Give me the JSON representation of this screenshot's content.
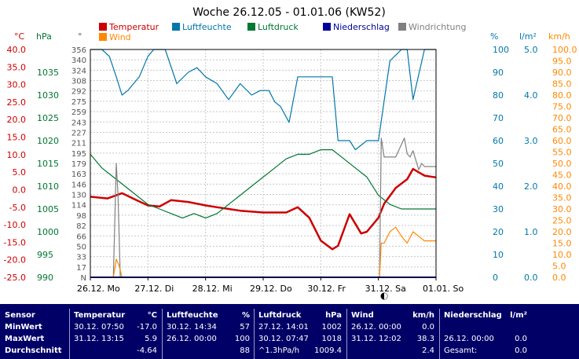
{
  "chart_data": {
    "type": "line",
    "title": "Woche 26.12.05 - 01.01.06 (KW52)",
    "x_ticks": [
      "26.12. Mo",
      "27.12. Di",
      "28.12. Mi",
      "29.12. Do",
      "30.12. Fr",
      "31.12. Sa",
      "01.01. So"
    ],
    "axes": {
      "temperature": {
        "unit": "°C",
        "min": -25,
        "max": 40,
        "ticks": [
          "40.0",
          "35.0",
          "30.0",
          "25.0",
          "20.0",
          "15.0",
          "10.0",
          "5.0",
          "0.0",
          "-5.0",
          "-10.0",
          "-15.0",
          "-20.0",
          "-25.0"
        ]
      },
      "pressure": {
        "unit": "hPa",
        "min": 990,
        "max": 1040,
        "ticks": [
          "1035",
          "1030",
          "1025",
          "1020",
          "1015",
          "1010",
          "1005",
          "1000",
          "995",
          "990"
        ]
      },
      "direction": {
        "unit": "°",
        "min": 0,
        "max": 360,
        "ticks": [
          "356",
          "340",
          "324",
          "308",
          "292",
          "275",
          "259",
          "243",
          "227",
          "211",
          "195",
          "179",
          "163",
          "146",
          "130",
          "114",
          "98",
          "82",
          "66",
          "50",
          "33",
          "17",
          "N"
        ]
      },
      "humidity": {
        "unit": "%",
        "min": 0,
        "max": 100,
        "ticks": [
          "100",
          "90",
          "80",
          "70",
          "60",
          "50",
          "40",
          "30",
          "20",
          "10",
          "0"
        ]
      },
      "rain": {
        "unit": "l/m²",
        "min": 0,
        "max": 5,
        "ticks": [
          "5.0",
          "4.0",
          "3.0",
          "2.0",
          "1.0",
          "0.0"
        ]
      },
      "wind": {
        "unit": "km/h",
        "min": 0,
        "max": 100,
        "ticks": [
          "100.0",
          "95.0",
          "90.0",
          "85.0",
          "80.0",
          "75.0",
          "70.0",
          "65.0",
          "60.0",
          "55.0",
          "50.0",
          "45.0",
          "40.0",
          "35.0",
          "30.0",
          "25.0",
          "20.0",
          "15.0",
          "10.0",
          "5.0",
          "0.0"
        ]
      }
    },
    "legend": [
      {
        "name": "Temperatur",
        "color": "#cc0000"
      },
      {
        "name": "Luftfeuchte",
        "color": "#0077aa"
      },
      {
        "name": "Luftdruck",
        "color": "#007733"
      },
      {
        "name": "Niederschlag",
        "color": "#000099"
      },
      {
        "name": "Windrichtung",
        "color": "#808080"
      },
      {
        "name": "Wind",
        "color": "#ff8800"
      }
    ],
    "series": [
      {
        "name": "Temperatur",
        "axis": "temperature",
        "color": "#cc0000",
        "x": [
          0,
          0.3,
          0.55,
          0.8,
          1.0,
          1.2,
          1.4,
          1.7,
          2.0,
          2.2,
          2.4,
          2.6,
          3.0,
          3.4,
          3.6,
          3.8,
          4.0,
          4.2,
          4.3,
          4.5,
          4.7,
          4.8,
          5.0,
          5.1,
          5.3,
          5.5,
          5.6,
          5.8,
          6.0
        ],
        "y": [
          -2,
          -2.5,
          -1,
          -3,
          -4.5,
          -4.8,
          -3,
          -3.5,
          -4.5,
          -5,
          -5.5,
          -6,
          -6.5,
          -6.5,
          -5,
          -8,
          -14.5,
          -17,
          -16,
          -7,
          -12.5,
          -12,
          -8,
          -4,
          0.5,
          3,
          5.9,
          4,
          3.5
        ]
      },
      {
        "name": "Luftfeuchte",
        "axis": "humidity",
        "color": "#0077aa",
        "x": [
          0,
          0.2,
          0.33,
          0.45,
          0.55,
          0.65,
          0.85,
          1.0,
          1.1,
          1.3,
          1.5,
          1.7,
          1.85,
          2.0,
          2.2,
          2.4,
          2.6,
          2.8,
          2.95,
          3.1,
          3.2,
          3.3,
          3.45,
          3.6,
          3.8,
          4.0,
          4.1,
          4.2,
          4.3,
          4.5,
          4.6,
          4.8,
          5.0,
          5.2,
          5.4,
          5.5,
          5.6,
          5.8,
          6.0
        ],
        "y": [
          100,
          100,
          97,
          88,
          80,
          82,
          88,
          97,
          100,
          100,
          85,
          90,
          92,
          88,
          85,
          78,
          85,
          80,
          82,
          82,
          77,
          75,
          68,
          88,
          88,
          88,
          88,
          88,
          60,
          60,
          56,
          60,
          60,
          95,
          100,
          100,
          78,
          100,
          100
        ]
      },
      {
        "name": "Luftdruck",
        "axis": "pressure",
        "color": "#007733",
        "x": [
          0,
          0.2,
          0.4,
          0.6,
          0.8,
          1.0,
          1.2,
          1.4,
          1.6,
          1.8,
          2.0,
          2.2,
          2.4,
          2.6,
          2.8,
          3.0,
          3.2,
          3.4,
          3.6,
          3.8,
          4.0,
          4.2,
          4.4,
          4.6,
          4.8,
          5.0,
          5.2,
          5.4,
          5.6,
          5.8,
          6.0
        ],
        "y": [
          1017,
          1014,
          1012,
          1010,
          1008,
          1006,
          1005,
          1004,
          1003,
          1004,
          1003,
          1004,
          1006,
          1008,
          1010,
          1012,
          1014,
          1016,
          1017,
          1017,
          1018,
          1018,
          1016,
          1014,
          1012,
          1008,
          1006,
          1005,
          1005,
          1005,
          1005
        ]
      },
      {
        "name": "Windrichtung",
        "axis": "direction",
        "color": "#808080",
        "x": [
          0.4,
          0.45,
          0.48,
          0.52,
          5.02,
          5.05,
          5.1,
          5.3,
          5.45,
          5.5,
          5.55,
          5.6,
          5.7,
          5.75,
          5.8,
          6.0
        ],
        "y": [
          0,
          180,
          130,
          0,
          0,
          220,
          190,
          190,
          220,
          195,
          190,
          200,
          170,
          180,
          175,
          175
        ]
      },
      {
        "name": "Wind",
        "axis": "wind",
        "color": "#ff8800",
        "x": [
          0.4,
          0.45,
          0.5,
          0.55,
          5.02,
          5.05,
          5.1,
          5.2,
          5.3,
          5.4,
          5.5,
          5.6,
          5.7,
          5.8,
          6.0
        ],
        "y": [
          0,
          8,
          5,
          0,
          0,
          15,
          15,
          20,
          22,
          18,
          15,
          20,
          18,
          16,
          16
        ]
      },
      {
        "name": "Niederschlag",
        "axis": "rain",
        "color": "#000099",
        "x": [
          0,
          6
        ],
        "y": [
          0,
          0
        ]
      }
    ],
    "markers": [
      {
        "x": 5.1,
        "label": "moon"
      }
    ]
  },
  "stats": {
    "headers": {
      "sensor": "Sensor",
      "temp": "Temperatur",
      "temp_unit": "°C",
      "hum": "Luftfeuchte",
      "hum_unit": "%",
      "press": "Luftdruck",
      "press_unit": "hPa",
      "wind": "Wind",
      "wind_unit": "km/h",
      "rain": "Niederschlag",
      "rain_unit": "l/m²"
    },
    "rows": [
      {
        "label": "MinWert",
        "temp_time": "30.12. 07:50",
        "temp_val": "-17.0",
        "hum_time": "30.12. 14:34",
        "hum_val": "57",
        "press_time": "27.12. 14:01",
        "press_val": "1002",
        "wind_time": "26.12. 00:00",
        "wind_val": "0.0",
        "rain_time": "",
        "rain_val": ""
      },
      {
        "label": "MaxWert",
        "temp_time": "31.12. 13:15",
        "temp_val": "5.9",
        "hum_time": "26.12. 00:00",
        "hum_val": "100",
        "press_time": "30.12. 07:47",
        "press_val": "1018",
        "wind_time": "31.12. 12:02",
        "wind_val": "38.3",
        "rain_time": "26.12. 00:00",
        "rain_val": "0.0"
      },
      {
        "label": "Durchschnitt",
        "temp_time": "",
        "temp_val": "-4.64",
        "hum_time": "",
        "hum_val": "88",
        "press_time": "^1.3hPa/h",
        "press_val": "1009.4",
        "wind_time": "",
        "wind_val": "2.4",
        "rain_time": "Gesamt:",
        "rain_val": "0.0"
      }
    ]
  }
}
